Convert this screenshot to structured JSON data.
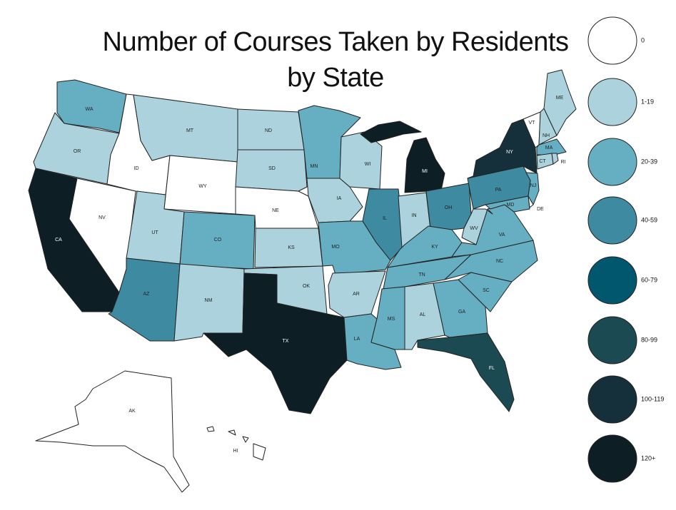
{
  "title_line1": "Number of Courses Taken by Residents",
  "title_line2": "by State",
  "legend": [
    {
      "label": "0",
      "color": "#ffffff"
    },
    {
      "label": "1-19",
      "color": "#acd3dd"
    },
    {
      "label": "20-39",
      "color": "#66afc2"
    },
    {
      "label": "40-59",
      "color": "#3e8aa0"
    },
    {
      "label": "60-79",
      "color": "#00576e"
    },
    {
      "label": "80-99",
      "color": "#1b4a52"
    },
    {
      "label": "100-119",
      "color": "#15303a"
    },
    {
      "label": "120+",
      "color": "#0d1f24"
    }
  ],
  "states": [
    {
      "abbr": "WA",
      "range": "20-39"
    },
    {
      "abbr": "OR",
      "range": "1-19"
    },
    {
      "abbr": "CA",
      "range": "120+"
    },
    {
      "abbr": "ID",
      "range": "0"
    },
    {
      "abbr": "NV",
      "range": "0"
    },
    {
      "abbr": "MT",
      "range": "1-19"
    },
    {
      "abbr": "WY",
      "range": "0"
    },
    {
      "abbr": "UT",
      "range": "1-19"
    },
    {
      "abbr": "CO",
      "range": "20-39"
    },
    {
      "abbr": "AZ",
      "range": "40-59"
    },
    {
      "abbr": "NM",
      "range": "1-19"
    },
    {
      "abbr": "ND",
      "range": "1-19"
    },
    {
      "abbr": "SD",
      "range": "1-19"
    },
    {
      "abbr": "NE",
      "range": "0"
    },
    {
      "abbr": "KS",
      "range": "1-19"
    },
    {
      "abbr": "OK",
      "range": "1-19"
    },
    {
      "abbr": "TX",
      "range": "120+"
    },
    {
      "abbr": "MN",
      "range": "20-39"
    },
    {
      "abbr": "IA",
      "range": "1-19"
    },
    {
      "abbr": "MO",
      "range": "20-39"
    },
    {
      "abbr": "AR",
      "range": "1-19"
    },
    {
      "abbr": "LA",
      "range": "20-39"
    },
    {
      "abbr": "WI",
      "range": "1-19"
    },
    {
      "abbr": "IL",
      "range": "40-59"
    },
    {
      "abbr": "MI",
      "range": "120+"
    },
    {
      "abbr": "IN",
      "range": "1-19"
    },
    {
      "abbr": "OH",
      "range": "40-59"
    },
    {
      "abbr": "KY",
      "range": "20-39"
    },
    {
      "abbr": "TN",
      "range": "20-39"
    },
    {
      "abbr": "MS",
      "range": "20-39"
    },
    {
      "abbr": "AL",
      "range": "1-19"
    },
    {
      "abbr": "GA",
      "range": "20-39"
    },
    {
      "abbr": "FL",
      "range": "80-99"
    },
    {
      "abbr": "SC",
      "range": "20-39"
    },
    {
      "abbr": "NC",
      "range": "20-39"
    },
    {
      "abbr": "VA",
      "range": "20-39"
    },
    {
      "abbr": "WV",
      "range": "1-19"
    },
    {
      "abbr": "PA",
      "range": "40-59"
    },
    {
      "abbr": "NY",
      "range": "100-119"
    },
    {
      "abbr": "VT",
      "range": "0"
    },
    {
      "abbr": "NH",
      "range": "1-19"
    },
    {
      "abbr": "ME",
      "range": "1-19"
    },
    {
      "abbr": "MA",
      "range": "20-39"
    },
    {
      "abbr": "CT",
      "range": "1-19"
    },
    {
      "abbr": "RI",
      "range": "1-19"
    },
    {
      "abbr": "NJ",
      "range": "20-39"
    },
    {
      "abbr": "DE",
      "range": "0"
    },
    {
      "abbr": "MD",
      "range": "20-39"
    },
    {
      "abbr": "AK",
      "range": "0"
    },
    {
      "abbr": "HI",
      "range": "0"
    }
  ]
}
